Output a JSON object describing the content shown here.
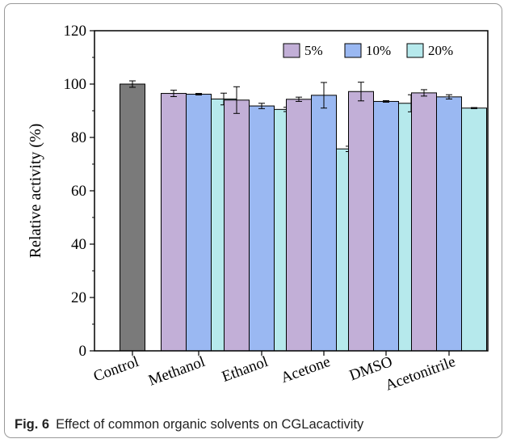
{
  "caption": {
    "label": "Fig. 6",
    "text": "Effect of common organic solvents on CGLacactivity"
  },
  "chart_data": {
    "type": "bar",
    "title": "",
    "xlabel": "",
    "ylabel": "Relative activity (%)",
    "ylim": [
      0,
      120
    ],
    "yticks": [
      0,
      20,
      40,
      60,
      80,
      100,
      120
    ],
    "legend_position": "top-right",
    "control": {
      "category": "Control",
      "value": 100.0,
      "error": 1.2,
      "color": "#7a7a7a"
    },
    "categories": [
      "Methanol",
      "Ethanol",
      "Acetone",
      "DMSO",
      "Acetonitrile"
    ],
    "series": [
      {
        "name": "5%",
        "color": "#c2afd7",
        "values": [
          96.5,
          94.0,
          94.3,
          97.2,
          96.7
        ],
        "errors": [
          1.2,
          5.0,
          0.8,
          3.5,
          1.2
        ]
      },
      {
        "name": "10%",
        "color": "#9ab8f2",
        "values": [
          96.2,
          91.8,
          95.8,
          93.5,
          95.2
        ],
        "errors": [
          0.3,
          1.0,
          4.8,
          0.3,
          0.8
        ]
      },
      {
        "name": "20%",
        "color": "#b6e9ec",
        "values": [
          94.4,
          90.5,
          75.7,
          92.8,
          91.0
        ],
        "errors": [
          2.2,
          0.8,
          1.0,
          3.2,
          0.2
        ]
      }
    ]
  }
}
